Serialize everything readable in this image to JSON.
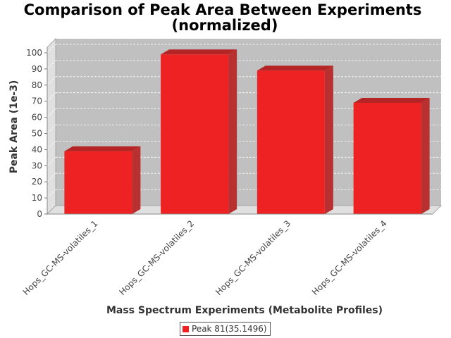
{
  "chart_data": {
    "type": "bar",
    "title_lines": [
      "Comparison of Peak Area Between Experiments",
      "(normalized)"
    ],
    "xlabel": "Mass Spectrum Experiments (Metabolite Profiles)",
    "ylabel": "Peak Area (1e-3)",
    "categories": [
      "Hops_GC-MS-volatiles_1",
      "Hops_GC-MS-volatiles_2",
      "Hops_GC-MS-volatiles_3",
      "Hops_GC-MS-volatiles_4"
    ],
    "series": [
      {
        "name": "Peak 81(35.1496)",
        "values": [
          39,
          99,
          89,
          69
        ],
        "color": "#ee2222"
      }
    ],
    "ylim": [
      0,
      100
    ],
    "yticks": [
      0,
      10,
      20,
      30,
      40,
      50,
      60,
      70,
      80,
      90,
      100
    ],
    "grid": true,
    "legend_position": "bottom-center",
    "colors": {
      "plot_background": "#c0c0c0",
      "wall": "#e0e0e0",
      "bar": "#ee2222"
    }
  }
}
